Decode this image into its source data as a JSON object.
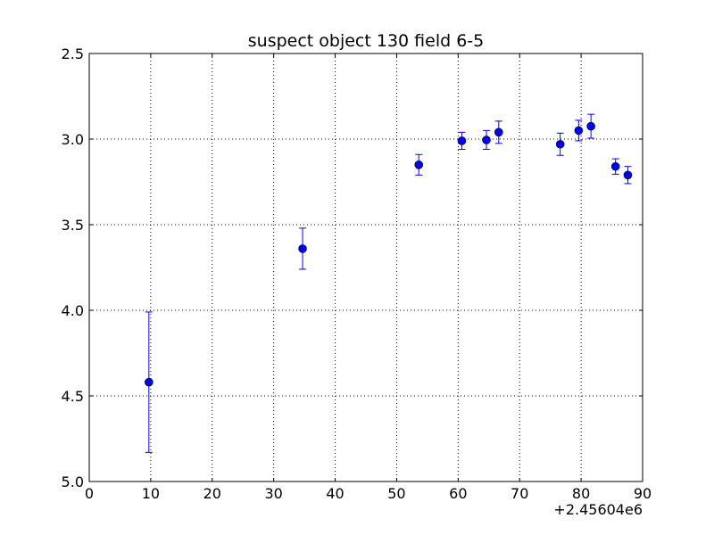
{
  "chart_data": {
    "type": "scatter",
    "title": "suspect object 130 field 6-5",
    "xlabel": "",
    "ylabel": "",
    "x_offset_label": "+2.45604e6",
    "xlim": [
      0,
      90
    ],
    "ylim": [
      5.0,
      2.5
    ],
    "y_inverted": true,
    "grid": true,
    "x_ticks": [
      0,
      10,
      20,
      30,
      40,
      50,
      60,
      70,
      80,
      90
    ],
    "x_tick_labels": [
      "0",
      "10",
      "20",
      "30",
      "40",
      "50",
      "60",
      "70",
      "80",
      "90"
    ],
    "y_ticks": [
      2.5,
      3.0,
      3.5,
      4.0,
      4.5,
      5.0
    ],
    "y_tick_labels": [
      "2.5",
      "3.0",
      "3.5",
      "4.0",
      "4.5",
      "5.0"
    ],
    "marker_color": "#0000ff",
    "errorbar_color": "#0000ff",
    "series": [
      {
        "points": [
          {
            "x": 9.7,
            "y": 4.42,
            "err": 0.41
          },
          {
            "x": 34.7,
            "y": 3.64,
            "err": 0.12
          },
          {
            "x": 53.6,
            "y": 3.15,
            "err": 0.06
          },
          {
            "x": 60.6,
            "y": 3.01,
            "err": 0.05
          },
          {
            "x": 64.6,
            "y": 3.005,
            "err": 0.055
          },
          {
            "x": 66.6,
            "y": 2.96,
            "err": 0.065
          },
          {
            "x": 76.6,
            "y": 3.03,
            "err": 0.065
          },
          {
            "x": 79.6,
            "y": 2.95,
            "err": 0.06
          },
          {
            "x": 81.6,
            "y": 2.925,
            "err": 0.07
          },
          {
            "x": 85.6,
            "y": 3.16,
            "err": 0.045
          },
          {
            "x": 87.6,
            "y": 3.21,
            "err": 0.05
          }
        ]
      }
    ]
  }
}
